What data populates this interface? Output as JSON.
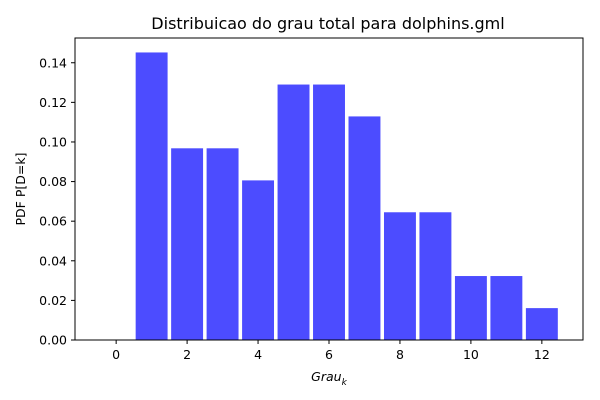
{
  "chart_data": {
    "type": "bar",
    "title": "Distribuicao do grau total para dolphins.gml",
    "xlabel_main": "Grau",
    "xlabel_sub": "k",
    "ylabel": "PDF P[D=k]",
    "x": [
      1,
      2,
      3,
      4,
      5,
      6,
      7,
      8,
      9,
      10,
      11,
      12
    ],
    "values": [
      0.1452,
      0.0968,
      0.0968,
      0.0806,
      0.129,
      0.129,
      0.1129,
      0.0645,
      0.0645,
      0.0323,
      0.0323,
      0.0161
    ],
    "xlim": [
      -1.16,
      13.16
    ],
    "ylim": [
      0,
      0.1525
    ],
    "xticks": [
      0,
      2,
      4,
      6,
      8,
      10,
      12
    ],
    "xtick_labels": [
      "0",
      "2",
      "4",
      "6",
      "8",
      "10",
      "12"
    ],
    "yticks": [
      0,
      0.02,
      0.04,
      0.06,
      0.08,
      0.1,
      0.12,
      0.14
    ],
    "ytick_labels": [
      "0.00",
      "0.02",
      "0.04",
      "0.06",
      "0.08",
      "0.10",
      "0.12",
      "0.14"
    ],
    "bar_width": 0.9,
    "bar_color": "#4c4cff",
    "grid": false,
    "legend": "none"
  }
}
